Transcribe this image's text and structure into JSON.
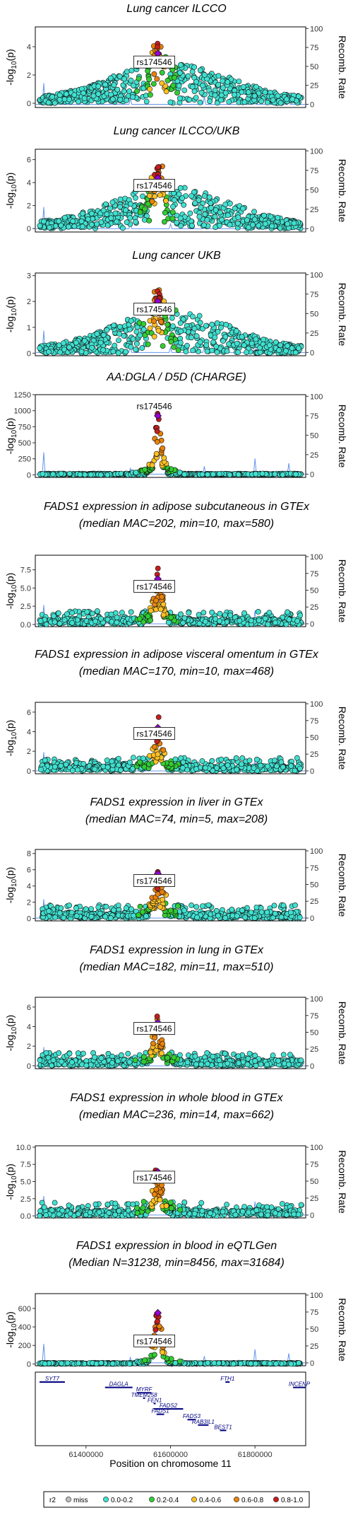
{
  "chart_data": {
    "type": "scatter",
    "x_axis": {
      "label": "Position on chromosome 11",
      "range": [
        61280000,
        61920000
      ],
      "ticks": [
        61400000,
        61600000,
        61800000
      ],
      "tick_labels": [
        "61400000",
        "61600000",
        "61800000"
      ]
    },
    "lead_snp": {
      "name": "rs174546",
      "position": 61570000
    },
    "panels": [
      {
        "title": [
          "Lung cancer ILCCO"
        ],
        "ylim": [
          -0.3,
          5.4
        ],
        "yticks": [
          0,
          2,
          4
        ],
        "ytick_labels": [
          "0",
          "2",
          "4"
        ],
        "peak": 4.4,
        "shape": "broad"
      },
      {
        "title": [
          "Lung cancer ILCCO/UKB"
        ],
        "ylim": [
          -0.3,
          6.9
        ],
        "yticks": [
          0,
          2,
          4,
          6
        ],
        "ytick_labels": [
          "0",
          "2",
          "4",
          "6"
        ],
        "peak": 5.5,
        "shape": "broad"
      },
      {
        "title": [
          "Lung cancer UKB"
        ],
        "ylim": [
          -0.1,
          3.1
        ],
        "yticks": [
          0,
          1,
          2,
          3
        ],
        "ytick_labels": [
          "0",
          "1",
          "2",
          "3"
        ],
        "peak": 2.5,
        "shape": "broad"
      },
      {
        "title": [
          "AA:DGLA / D5D (CHARGE)"
        ],
        "ylim": [
          -40,
          1250
        ],
        "yticks": [
          0,
          250,
          500,
          750,
          1000,
          1250
        ],
        "ytick_labels": [
          "0",
          "250",
          "500",
          "750",
          "1000",
          "1250"
        ],
        "peak": 1000,
        "shape": "extreme"
      },
      {
        "title": [
          "FADS1 expression in adipose subcutaneous in GTEx",
          "(median MAC=202, min=10, max=580)"
        ],
        "ylim": [
          -0.3,
          9.5
        ],
        "yticks": [
          0,
          2.5,
          5,
          7.5
        ],
        "ytick_labels": [
          "0.0",
          "2.5",
          "5.0",
          "7.5"
        ],
        "peak": 7.8,
        "shape": "sharp"
      },
      {
        "title": [
          "FADS1 expression in adipose visceral omentum in GTEx",
          "(median MAC=170, min=10, max=468)"
        ],
        "ylim": [
          -0.3,
          7.0
        ],
        "yticks": [
          0,
          2,
          4,
          6
        ],
        "ytick_labels": [
          "0",
          "2",
          "4",
          "6"
        ],
        "peak": 5.5,
        "shape": "sharp"
      },
      {
        "title": [
          "FADS1 expression in liver in GTEx",
          "(median MAC=74, min=5, max=208)"
        ],
        "ylim": [
          -0.3,
          8.5
        ],
        "yticks": [
          0,
          2,
          4,
          6,
          8
        ],
        "ytick_labels": [
          "0",
          "2",
          "4",
          "6",
          "8"
        ],
        "peak": 6.9,
        "shape": "sharp"
      },
      {
        "title": [
          "FADS1 expression in lung in GTEx",
          "(median MAC=182, min=11, max=510)"
        ],
        "ylim": [
          -0.3,
          7.0
        ],
        "yticks": [
          0,
          2,
          4,
          6
        ],
        "ytick_labels": [
          "0",
          "2",
          "4",
          "6"
        ],
        "peak": 5.5,
        "shape": "sharp"
      },
      {
        "title": [
          "FADS1 expression in whole blood in GTEx",
          "(median MAC=236, min=14, max=662)"
        ],
        "ylim": [
          -0.3,
          10.2
        ],
        "yticks": [
          0,
          2.5,
          5,
          7.5,
          10
        ],
        "ytick_labels": [
          "0.0",
          "2.5",
          "5.0",
          "7.5",
          "10.0"
        ],
        "peak": 8.0,
        "shape": "sharp"
      },
      {
        "title": [
          "FADS1 expression in blood in eQTLGen",
          "(Median N=31238, min=8456, max=31684)"
        ],
        "ylim": [
          -20,
          760
        ],
        "yticks": [
          0,
          200,
          400,
          600
        ],
        "ytick_labels": [
          "0",
          "200",
          "400",
          "600"
        ],
        "peak": 600,
        "shape": "extreme"
      }
    ],
    "y_axis_label": "-log10(p)",
    "y_axis_label_parts": {
      "pre": "-log",
      "sub": "10",
      "post": "(p)"
    },
    "recomb_axis": {
      "label": "Recomb. Rate",
      "ticks": [
        0,
        25,
        50,
        75,
        100
      ],
      "tick_labels": [
        "0",
        "25",
        "50",
        "75",
        "100"
      ]
    },
    "genes": [
      {
        "name": "SYT7",
        "start": 61290000,
        "end": 61350000,
        "row": 0
      },
      {
        "name": "FTH1",
        "start": 61730000,
        "end": 61740000,
        "row": 0
      },
      {
        "name": "INCENP",
        "start": 61890000,
        "end": 61920000,
        "row": 1
      },
      {
        "name": "DAGLA",
        "start": 61445000,
        "end": 61510000,
        "row": 1
      },
      {
        "name": "MYRF",
        "start": 61520000,
        "end": 61555000,
        "row": 2
      },
      {
        "name": "TMEM258",
        "start": 61535000,
        "end": 61537000,
        "row": 3
      },
      {
        "name": "FEN1",
        "start": 61560000,
        "end": 61565000,
        "row": 4
      },
      {
        "name": "FADS2",
        "start": 61560000,
        "end": 61630000,
        "row": 5
      },
      {
        "name": "FADS1",
        "start": 61567000,
        "end": 61585000,
        "row": 6
      },
      {
        "name": "FADS3",
        "start": 61640000,
        "end": 61660000,
        "row": 7
      },
      {
        "name": "RAB3IL1",
        "start": 61665000,
        "end": 61690000,
        "row": 8
      },
      {
        "name": "BEST1",
        "start": 61717000,
        "end": 61732000,
        "row": 9
      }
    ],
    "legend": {
      "title": "r2",
      "entries": [
        {
          "label": "miss",
          "color": "#BEBEBE"
        },
        {
          "label": "0.0-0.2",
          "color": "#40E0D0"
        },
        {
          "label": "0.2-0.4",
          "color": "#32CD32"
        },
        {
          "label": "0.4-0.6",
          "color": "#FFC125"
        },
        {
          "label": "0.6-0.8",
          "color": "#E8820C"
        },
        {
          "label": "0.8-1.0",
          "color": "#C41E1E"
        }
      ],
      "lead_color": "#9400D3",
      "recomb_line_color": "#6495ED"
    }
  }
}
